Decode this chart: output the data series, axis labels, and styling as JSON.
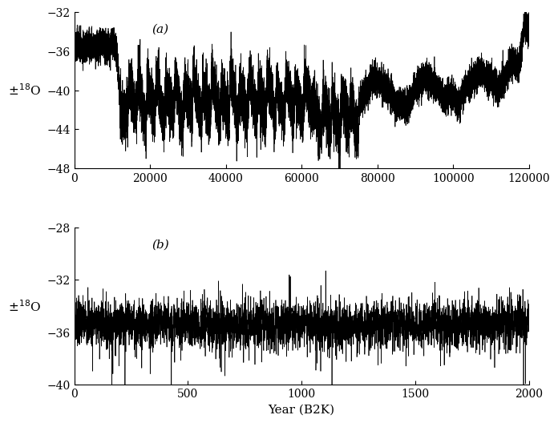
{
  "panel_a": {
    "label": "(a)",
    "xlim": [
      0,
      120000
    ],
    "ylim": [
      -48,
      -32
    ],
    "yticks": [
      -48,
      -44,
      -40,
      -36,
      -32
    ],
    "xticks": [
      0,
      20000,
      40000,
      60000,
      80000,
      100000,
      120000
    ],
    "ylabel": "$\\delta^{18}$O"
  },
  "panel_b": {
    "label": "(b)",
    "xlim": [
      0,
      2000
    ],
    "ylim": [
      -40,
      -28
    ],
    "yticks": [
      -40,
      -36,
      -32,
      -28
    ],
    "xticks": [
      0,
      500,
      1000,
      1500,
      2000
    ],
    "ylabel": "$\\delta^{18}$O"
  },
  "xlabel": "Year (B2K)",
  "line_color": "#000000",
  "line_width": 0.5,
  "background_color": "#ffffff",
  "label_fontsize": 11,
  "tick_fontsize": 10
}
